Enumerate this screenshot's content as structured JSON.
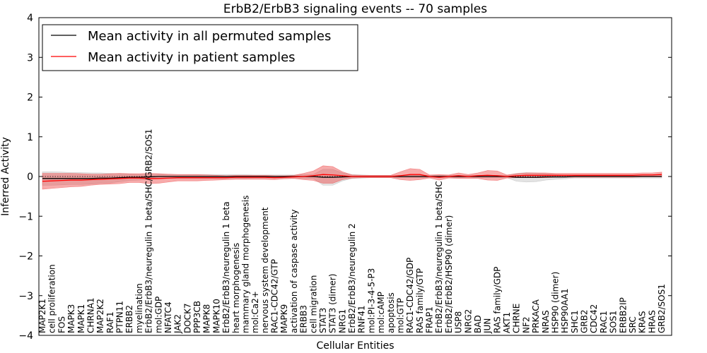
{
  "chart_data": {
    "type": "line",
    "title": "ErbB2/ErbB3 signaling events -- 70 samples",
    "xlabel": "Cellular Entities",
    "ylabel": "Inferred Activity",
    "ylim": [
      -4,
      4
    ],
    "yticks": [
      4,
      3,
      2,
      1,
      0,
      -1,
      -2,
      -3,
      -4
    ],
    "ytick_labels": [
      "4",
      "3",
      "2",
      "1",
      "0",
      "−1",
      "−2",
      "−3",
      "−4"
    ],
    "grid": false,
    "legend_position": "top-left",
    "categories": [
      "MAP2K1",
      "cell proliferation",
      "FOS",
      "MAPK3",
      "MAPK1",
      "CHRNA1",
      "MAP2K2",
      "RAF1",
      "PTPN11",
      "ERBB2",
      "myelination",
      "ErbB2/ErbB3/neuregulin 1 beta/SHC/GRB2/SOS1",
      "mol:GDP",
      "NFATC4",
      "JAK2",
      "DOCK7",
      "PPP3CB",
      "MAPK8",
      "MAPK10",
      "ErbB2/ErbB3/neuregulin 1 beta",
      "heart morphogenesis",
      "mammary gland morphogenesis",
      "mol:Ca2+",
      "nervous system development",
      "RAC1-CDC42/GTP",
      "MAPK9",
      "activation of caspase activity",
      "ERBB3",
      "cell migration",
      "STAT3",
      "STAT3 (dimer)",
      "NRG1",
      "ErbB2/ErbB3/neuregulin 2",
      "RNF41",
      "mol:PI-3-4-5-P3",
      "mol:cAMP",
      "apoptosis",
      "mol:GTP",
      "RAC1-CDC42/GDP",
      "RAS family/GTP",
      "FRAP1",
      "ErbB2/ErbB3/neuregulin 1 beta/SHC",
      "ErbB2/ErbB2/HSP90 (dimer)",
      "USP8",
      "NRG2",
      "BAD",
      "JUN",
      "RAS family/GDP",
      "AKT1",
      "CHRNE",
      "NF2",
      "PRKACA",
      "NRAS",
      "HSP90 (dimer)",
      "HSP90AA1",
      "SHC1",
      "GRB2",
      "CDC42",
      "RAC1",
      "SOS1",
      "ERBB2IP",
      "SRC",
      "KRAS",
      "HRAS",
      "GRB2/SOS1"
    ],
    "series": [
      {
        "name": "Mean activity in all permuted samples",
        "color": "#000000",
        "values": [
          -0.05,
          -0.05,
          -0.05,
          -0.05,
          -0.05,
          -0.05,
          -0.04,
          -0.04,
          -0.03,
          -0.02,
          -0.02,
          -0.01,
          0.0,
          0.0,
          0.0,
          0.0,
          0.0,
          0.0,
          0.0,
          0.0,
          0.0,
          0.0,
          0.0,
          0.0,
          0.0,
          0.0,
          0.0,
          0.0,
          0.0,
          -0.02,
          -0.02,
          -0.01,
          0.0,
          0.0,
          0.0,
          0.0,
          0.0,
          0.0,
          0.0,
          0.0,
          0.0,
          0.0,
          0.0,
          0.0,
          0.0,
          0.0,
          0.0,
          0.0,
          0.0,
          -0.02,
          -0.02,
          -0.02,
          -0.01,
          -0.01,
          -0.01,
          0.0,
          0.0,
          0.0,
          0.0,
          0.0,
          0.0,
          0.0,
          0.0,
          0.0,
          0.0
        ],
        "band_half_width": [
          0.17,
          0.17,
          0.16,
          0.15,
          0.15,
          0.14,
          0.13,
          0.12,
          0.1,
          0.08,
          0.07,
          0.06,
          0.06,
          0.05,
          0.05,
          0.05,
          0.05,
          0.05,
          0.05,
          0.05,
          0.05,
          0.05,
          0.04,
          0.04,
          0.04,
          0.04,
          0.04,
          0.05,
          0.05,
          0.2,
          0.2,
          0.1,
          0.05,
          0.04,
          0.03,
          0.03,
          0.03,
          0.03,
          0.03,
          0.03,
          0.03,
          0.03,
          0.03,
          0.03,
          0.03,
          0.03,
          0.03,
          0.03,
          0.03,
          0.1,
          0.12,
          0.11,
          0.08,
          0.06,
          0.05,
          0.04,
          0.04,
          0.04,
          0.04,
          0.04,
          0.04,
          0.04,
          0.04,
          0.04,
          0.04
        ]
      },
      {
        "name": "Mean activity in patient samples",
        "color": "#ff0000",
        "values": [
          -0.12,
          -0.11,
          -0.1,
          -0.09,
          -0.09,
          -0.08,
          -0.07,
          -0.06,
          -0.05,
          -0.04,
          -0.04,
          -0.05,
          -0.05,
          -0.04,
          -0.03,
          -0.03,
          -0.03,
          -0.03,
          -0.03,
          -0.03,
          -0.02,
          -0.02,
          -0.02,
          -0.02,
          -0.03,
          -0.02,
          -0.01,
          0.0,
          0.02,
          0.05,
          0.04,
          0.02,
          0.0,
          0.0,
          0.0,
          0.0,
          0.0,
          0.02,
          0.05,
          0.05,
          0.0,
          -0.02,
          0.0,
          0.02,
          0.0,
          0.02,
          0.03,
          0.02,
          0.0,
          0.02,
          0.03,
          0.03,
          0.03,
          0.03,
          0.03,
          0.03,
          0.03,
          0.03,
          0.03,
          0.03,
          0.03,
          0.03,
          0.04,
          0.04,
          0.05
        ],
        "band_half_width": [
          0.2,
          0.19,
          0.18,
          0.17,
          0.16,
          0.14,
          0.13,
          0.13,
          0.13,
          0.11,
          0.11,
          0.13,
          0.12,
          0.1,
          0.08,
          0.08,
          0.08,
          0.07,
          0.06,
          0.05,
          0.05,
          0.05,
          0.05,
          0.05,
          0.05,
          0.04,
          0.04,
          0.08,
          0.12,
          0.22,
          0.21,
          0.1,
          0.04,
          0.03,
          0.03,
          0.03,
          0.03,
          0.1,
          0.15,
          0.13,
          0.04,
          0.07,
          0.04,
          0.07,
          0.05,
          0.07,
          0.12,
          0.12,
          0.04,
          0.05,
          0.06,
          0.06,
          0.06,
          0.05,
          0.05,
          0.05,
          0.05,
          0.05,
          0.05,
          0.05,
          0.05,
          0.05,
          0.05,
          0.05,
          0.06
        ]
      }
    ]
  }
}
